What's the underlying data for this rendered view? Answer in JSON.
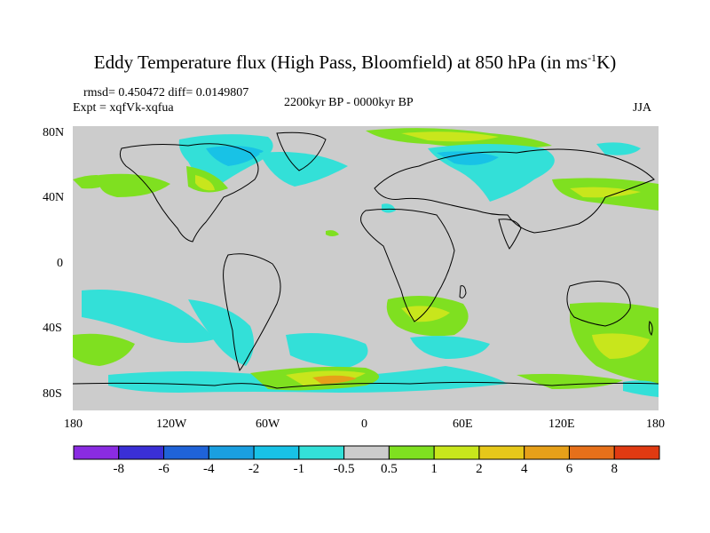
{
  "title": {
    "main": "Eddy Temperature flux (High Pass, Bloomfield) at 850 hPa (in ms",
    "exp": "-1",
    "end": "K)"
  },
  "stats": "rmsd= 0.450472 diff= 0.0149807",
  "expt": "Expt = xqfVk-xqfua",
  "period": "2200kyr BP - 0000kyr BP",
  "season": "JJA",
  "axes": {
    "lat_labels": [
      "80N",
      "40N",
      "0",
      "40S",
      "80S"
    ],
    "lon_labels": [
      "180",
      "120W",
      "60W",
      "0",
      "60E",
      "120E",
      "180"
    ]
  },
  "colorbar": {
    "labels": [
      "-8",
      "-6",
      "-4",
      "-2",
      "-1",
      "-0.5",
      "0.5",
      "1",
      "2",
      "4",
      "6",
      "8"
    ],
    "colors": [
      "#8a2be2",
      "#3a2fd6",
      "#1f63d8",
      "#1a9fe0",
      "#18c2e6",
      "#33e0d8",
      "#cccccc",
      "#7fe020",
      "#c8e61c",
      "#e6c81a",
      "#e6a019",
      "#e6701a",
      "#e03a12"
    ]
  },
  "colors": {
    "land_bg": "#cccccc",
    "coast": "#000000",
    "neg_light": "#33e0d8",
    "neg_mid": "#18c2e6",
    "pos_light": "#7fe020",
    "pos_mid": "#c8e61c",
    "pos_strong": "#e6c81a",
    "pos_high": "#e6a019"
  }
}
